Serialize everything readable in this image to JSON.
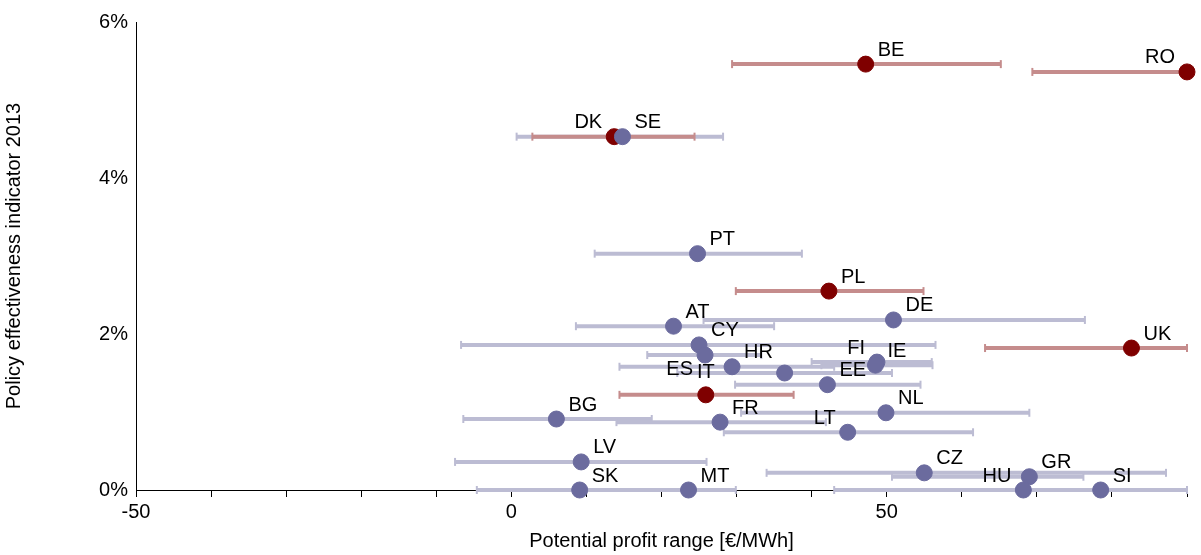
{
  "chart_data": {
    "type": "scatter",
    "xlabel": "Potential profit range [€/MWh]",
    "ylabel": "Policy effectiveness indicator 2013",
    "xlim": [
      -50,
      90
    ],
    "ylim": [
      0,
      6
    ],
    "xticks": [
      -50,
      {
        "value": -40,
        "label": null
      },
      {
        "value": -30,
        "label": null
      },
      {
        "value": -20,
        "label": null
      },
      {
        "value": -10,
        "label": null
      },
      0,
      {
        "value": 10,
        "label": null
      },
      {
        "value": 20,
        "label": null
      },
      {
        "value": 30,
        "label": null
      },
      {
        "value": 40,
        "label": null
      },
      50,
      {
        "value": 60,
        "label": null
      },
      {
        "value": 70,
        "label": null
      },
      {
        "value": 80,
        "label": null
      },
      {
        "value": 90,
        "label": null
      }
    ],
    "yticks": [
      {
        "value": 0,
        "label": "0%"
      },
      {
        "value": 2,
        "label": "2%"
      },
      {
        "value": 4,
        "label": "4%"
      },
      {
        "value": 6,
        "label": "6%"
      }
    ],
    "grid": false,
    "legend": false,
    "marker": "circle",
    "series": [
      {
        "color": "#6b6b9e",
        "x": [
          14.8,
          24.8,
          21.6,
          50.9,
          25.0,
          25.8,
          29.4,
          36.4,
          48.7,
          48.5,
          42.1,
          6.0,
          27.8,
          49.9,
          44.8,
          9.3,
          55.0,
          69.0,
          68.2,
          78.5,
          9.1,
          23.6
        ],
        "values": [
          4.53,
          3.03,
          2.1,
          2.18,
          1.86,
          1.73,
          1.58,
          1.5,
          1.64,
          1.6,
          1.35,
          0.91,
          0.87,
          0.99,
          0.74,
          0.36,
          0.22,
          0.17,
          0,
          0,
          0,
          0
        ],
        "xerrors": [
          [
            0.7,
            28.2
          ],
          [
            11.1,
            38.7
          ],
          [
            8.6,
            35.0
          ],
          [
            25.6,
            76.4
          ],
          [
            -6.7,
            56.5
          ],
          [
            18.1,
            33.3
          ],
          [
            14.4,
            43.0
          ],
          [
            22.1,
            50.7
          ],
          [
            40.0,
            56.0
          ],
          [
            41.3,
            56.1
          ],
          [
            29.8,
            54.5
          ],
          [
            -6.4,
            18.7
          ],
          [
            14.0,
            41.9
          ],
          [
            30.6,
            69.0
          ],
          [
            28.3,
            61.5
          ],
          [
            -7.5,
            26.0
          ],
          [
            34.0,
            87.2
          ],
          [
            50.7,
            76.2
          ],
          [
            43.0,
            90
          ],
          null,
          [
            -4.6,
            29.9
          ],
          null
        ]
      },
      {
        "color": "#7f0000",
        "x": [
          47.2,
          90,
          13.7,
          42.3,
          82.6,
          25.9
        ],
        "values": [
          5.46,
          5.36,
          4.53,
          2.55,
          1.82,
          1.22
        ],
        "xerrors": [
          [
            29.4,
            65.2
          ],
          [
            69.4,
            90
          ],
          [
            2.8,
            24.4
          ],
          [
            29.9,
            54.9
          ],
          [
            63.1,
            90
          ],
          [
            14.4,
            37.6
          ]
        ]
      }
    ],
    "annotations": [
      {
        "text": "BE",
        "x": 47.2,
        "y": 5.46
      },
      {
        "text": "RO",
        "x": 90,
        "y": 5.36
      },
      {
        "text": "DK",
        "x": 13.7,
        "y": 4.53
      },
      {
        "text": "SE",
        "x": 14.8,
        "y": 4.53
      },
      {
        "text": "PT",
        "x": 24.8,
        "y": 3.03
      },
      {
        "text": "PL",
        "x": 42.3,
        "y": 2.55
      },
      {
        "text": "AT",
        "x": 21.6,
        "y": 2.1
      },
      {
        "text": "CY",
        "x": 25.0,
        "y": 1.86
      },
      {
        "text": "DE",
        "x": 50.9,
        "y": 2.18
      },
      {
        "text": "UK",
        "x": 82.6,
        "y": 1.82
      },
      {
        "text": "ES",
        "x": 25.8,
        "y": 1.73
      },
      {
        "text": "IE",
        "x": 48.5,
        "y": 1.6
      },
      {
        "text": "FI",
        "x": 48.7,
        "y": 1.64
      },
      {
        "text": "HR",
        "x": 29.4,
        "y": 1.58
      },
      {
        "text": "IT",
        "x": 25.9,
        "y": 1.22
      },
      {
        "text": "EE",
        "x": 42.1,
        "y": 1.35
      },
      {
        "text": "BG",
        "x": 6.0,
        "y": 0.91
      },
      {
        "text": "FR",
        "x": 27.8,
        "y": 0.87
      },
      {
        "text": "NL",
        "x": 49.9,
        "y": 0.99
      },
      {
        "text": "LT",
        "x": 44.8,
        "y": 0.74
      },
      {
        "text": "LV",
        "x": 9.3,
        "y": 0.36
      },
      {
        "text": "CZ",
        "x": 55.0,
        "y": 0.22
      },
      {
        "text": "GR",
        "x": 69.0,
        "y": 0.17
      },
      {
        "text": "HU",
        "x": 68.2,
        "y": 0
      },
      {
        "text": "SI",
        "x": 78.5,
        "y": 0
      },
      {
        "text": "SK",
        "x": 9.1,
        "y": 0
      },
      {
        "text": "MT",
        "x": 23.6,
        "y": 0
      }
    ]
  }
}
